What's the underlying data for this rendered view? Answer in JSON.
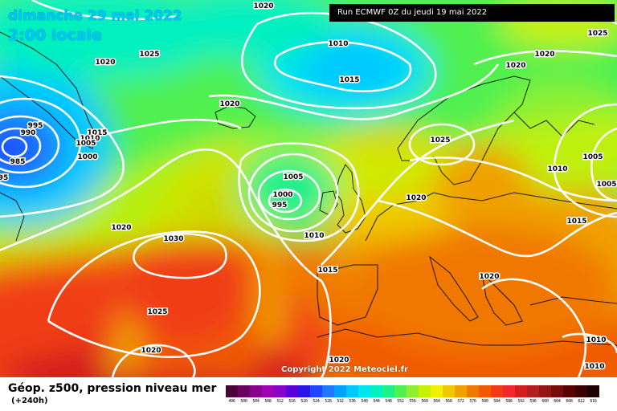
{
  "title": {
    "date": "dimanche 29 mai 2022",
    "time": "2:00 locale"
  },
  "run_info": "Run ECMWF 0Z du jeudi 19 mai 2022",
  "copyright": "Copyright 2022 Meteociel.fr",
  "product": "Géop. z500, pression niveau mer",
  "lead_time": "(+240h)",
  "legend": {
    "unit_values": [
      "496",
      "500",
      "504",
      "508",
      "512",
      "516",
      "520",
      "524",
      "528",
      "532",
      "536",
      "540",
      "544",
      "548",
      "552",
      "556",
      "560",
      "564",
      "568",
      "572",
      "576",
      "580",
      "584",
      "588",
      "592",
      "596",
      "600",
      "604",
      "608",
      "612",
      "616"
    ],
    "colors": [
      "#4a003a",
      "#6a0060",
      "#8a008a",
      "#a200b4",
      "#8a00cc",
      "#5a00d6",
      "#2a14e6",
      "#1e46ff",
      "#1e78ff",
      "#00a0ff",
      "#00c8ff",
      "#00e6f0",
      "#00f0c0",
      "#1ef08c",
      "#50f050",
      "#8cf030",
      "#c8f000",
      "#f0f000",
      "#f0c800",
      "#f0a000",
      "#f07800",
      "#f05a00",
      "#f03c14",
      "#f02828",
      "#d21e1e",
      "#b41e1e",
      "#961414",
      "#780a0a",
      "#5a0000",
      "#3c0000",
      "#1e0000"
    ]
  },
  "isobar_labels": [
    "1020",
    "1025",
    "1010",
    "1015",
    "1020",
    "1025",
    "1020",
    "995",
    "990",
    "985",
    "95",
    "1015",
    "1010",
    "1005",
    "1000",
    "1020",
    "1025",
    "1005",
    "1000",
    "995",
    "1020",
    "1010",
    "1030",
    "1015",
    "1025",
    "1020",
    "1020",
    "1020",
    "1020",
    "1005",
    "1010",
    "1005",
    "1015",
    "1010",
    "1010",
    "1020"
  ]
}
